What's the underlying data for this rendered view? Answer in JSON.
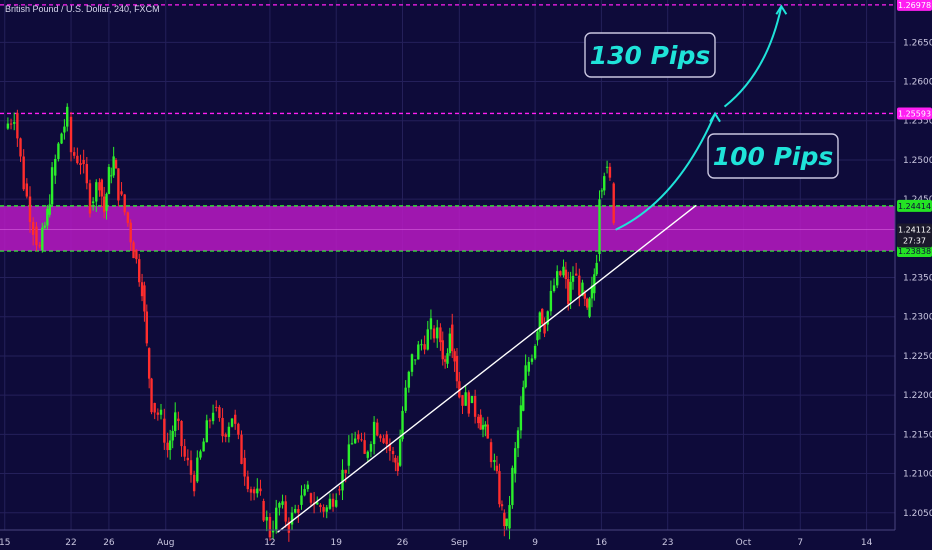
{
  "chart_data": {
    "type": "candlestick",
    "title": "British Pound / U.S. Dollar, 240, FXCM",
    "y_ticks": [
      "1.26500",
      "1.26000",
      "1.25500",
      "1.25000",
      "1.24500",
      "1.23500",
      "1.23000",
      "1.22500",
      "1.22000",
      "1.21500",
      "1.21000",
      "1.20500"
    ],
    "y_tick_values": [
      1.265,
      1.26,
      1.255,
      1.25,
      1.245,
      1.235,
      1.23,
      1.225,
      1.22,
      1.215,
      1.21,
      1.205
    ],
    "x_ticks": [
      {
        "label": "15",
        "day": 15
      },
      {
        "label": "22",
        "day": 22
      },
      {
        "label": "26",
        "day": 26
      },
      {
        "label": "Aug",
        "day": 32
      },
      {
        "label": "12",
        "day": 43
      },
      {
        "label": "19",
        "day": 50
      },
      {
        "label": "26",
        "day": 57
      },
      {
        "label": "Sep",
        "day": 63
      },
      {
        "label": "9",
        "day": 71
      },
      {
        "label": "16",
        "day": 78
      },
      {
        "label": "23",
        "day": 85
      },
      {
        "label": "Oct",
        "day": 93
      },
      {
        "label": "7",
        "day": 99
      },
      {
        "label": "14",
        "day": 106
      }
    ],
    "ylim": [
      1.2028,
      1.2704
    ],
    "xlim": [
      14.5,
      109
    ],
    "resistance_levels": [
      {
        "value": 1.26978,
        "label": "1.26978",
        "color": "#ff1ff2"
      },
      {
        "value": 1.25593,
        "label": "1.25593",
        "color": "#ff1ff2"
      }
    ],
    "zone": {
      "top": 1.24414,
      "bottom": 1.23838,
      "top_label": "1.24414",
      "bottom_label": "1.23838",
      "color": "#b81ac4",
      "border": "#2dff2d"
    },
    "current_price": {
      "value": 1.24112,
      "label": "1.24112",
      "countdown": "27:37"
    },
    "trendline": [
      {
        "day": 43.8,
        "price": 1.2025
      },
      {
        "day": 88,
        "price": 1.2442
      }
    ],
    "projection_path": [
      {
        "day": 79.5,
        "price": 1.2411
      },
      {
        "day": 86,
        "price": 1.2448
      },
      {
        "day": 90,
        "price": 1.2559
      }
    ],
    "projection_path2": [
      {
        "day": 91,
        "price": 1.2568
      },
      {
        "day": 95.5,
        "price": 1.2611
      },
      {
        "day": 97,
        "price": 1.2696
      }
    ],
    "annotations": [
      {
        "text": "130 Pips",
        "day": 91,
        "price": 1.2635
      },
      {
        "text": "100 Pips",
        "day": 96.5,
        "price": 1.2497
      }
    ],
    "candles_path": [
      [
        15,
        1.254
      ],
      [
        16,
        1.256
      ],
      [
        17,
        1.247
      ],
      [
        18,
        1.2415
      ],
      [
        18.7,
        1.2385
      ],
      [
        19.5,
        1.243
      ],
      [
        20,
        1.248
      ],
      [
        21,
        1.2535
      ],
      [
        21.6,
        1.2555
      ],
      [
        22,
        1.251
      ],
      [
        23,
        1.25
      ],
      [
        24,
        1.2445
      ],
      [
        25,
        1.2475
      ],
      [
        25.5,
        1.2435
      ],
      [
        26,
        1.248
      ],
      [
        26.5,
        1.25
      ],
      [
        27,
        1.246
      ],
      [
        28,
        1.242
      ],
      [
        28.6,
        1.2385
      ],
      [
        29.5,
        1.234
      ],
      [
        30,
        1.226
      ],
      [
        30.5,
        1.219
      ],
      [
        31.5,
        1.217
      ],
      [
        32.2,
        1.213
      ],
      [
        33,
        1.217
      ],
      [
        34,
        1.212
      ],
      [
        35,
        1.209
      ],
      [
        36,
        1.214
      ],
      [
        37,
        1.2185
      ],
      [
        38,
        1.215
      ],
      [
        39,
        1.2175
      ],
      [
        40,
        1.212
      ],
      [
        41,
        1.208
      ],
      [
        42,
        1.2065
      ],
      [
        43,
        1.2025
      ],
      [
        44,
        1.206
      ],
      [
        45,
        1.2035
      ],
      [
        46,
        1.206
      ],
      [
        47,
        1.2075
      ],
      [
        48,
        1.206
      ],
      [
        49,
        1.2055
      ],
      [
        50,
        1.208
      ],
      [
        51,
        1.211
      ],
      [
        52,
        1.215
      ],
      [
        53,
        1.212
      ],
      [
        54,
        1.2165
      ],
      [
        55,
        1.215
      ],
      [
        56,
        1.212
      ],
      [
        56.5,
        1.211
      ],
      [
        57,
        1.218
      ],
      [
        58,
        1.2245
      ],
      [
        59,
        1.2265
      ],
      [
        60,
        1.2285
      ],
      [
        61,
        1.227
      ],
      [
        61.5,
        1.224
      ],
      [
        62,
        1.229
      ],
      [
        62.5,
        1.225
      ],
      [
        63,
        1.22
      ],
      [
        64,
        1.219
      ],
      [
        65,
        1.2175
      ],
      [
        65.5,
        1.216
      ],
      [
        66,
        1.214
      ],
      [
        66.7,
        1.211
      ],
      [
        67.5,
        1.205
      ],
      [
        68,
        1.203
      ],
      [
        68.6,
        1.21
      ],
      [
        69.5,
        1.218
      ],
      [
        70,
        1.223
      ],
      [
        71,
        1.227
      ],
      [
        71.5,
        1.231
      ],
      [
        72,
        1.229
      ],
      [
        73,
        1.234
      ],
      [
        74,
        1.236
      ],
      [
        74.5,
        1.232
      ],
      [
        75,
        1.2355
      ],
      [
        76,
        1.233
      ],
      [
        76.5,
        1.23
      ],
      [
        77,
        1.233
      ],
      [
        77.5,
        1.238
      ],
      [
        77.8,
        1.246
      ],
      [
        78.3,
        1.249
      ],
      [
        78.9,
        1.247
      ],
      [
        79.3,
        1.243
      ],
      [
        79.8,
        1.2411
      ]
    ]
  }
}
